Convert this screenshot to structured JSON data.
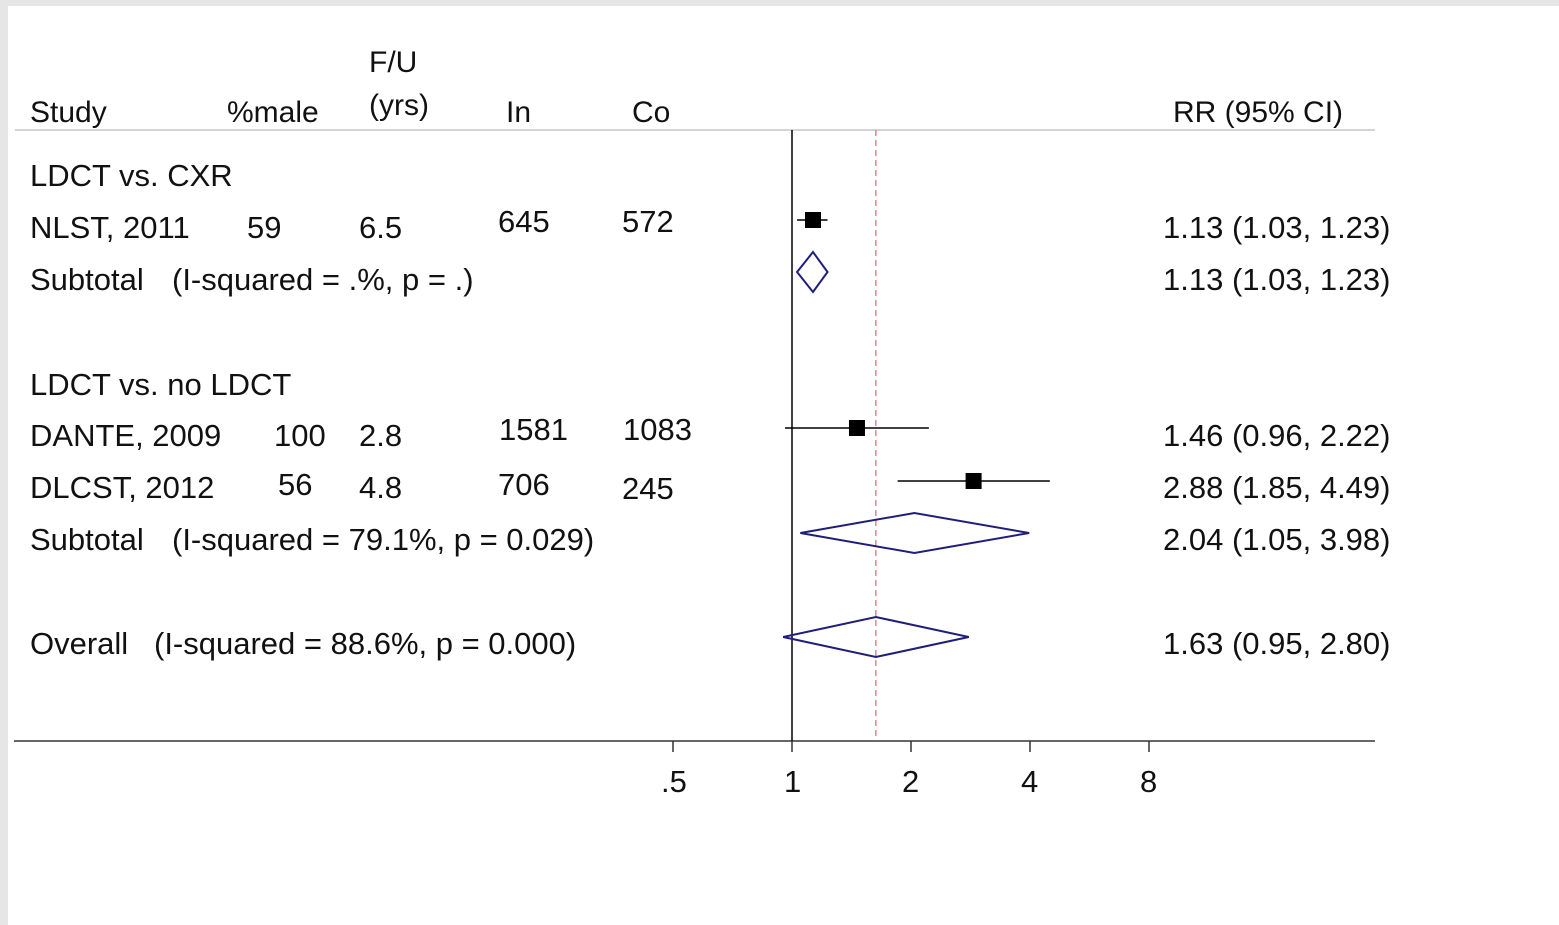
{
  "headers": {
    "study": "Study",
    "pct_male": "%male",
    "fu_line1": "F/U",
    "fu_line2": "(yrs)",
    "in": "In",
    "co": "Co",
    "rr": "RR (95% CI)"
  },
  "groups": [
    {
      "label": "LDCT vs. CXR",
      "studies": [
        {
          "name": "NLST, 2011",
          "pct_male": "59",
          "fu": "6.5",
          "in": "645",
          "co": "572",
          "rr_text": "1.13 (1.03, 1.23)"
        }
      ],
      "subtotal": {
        "label": "Subtotal",
        "stat": "(I-squared = .%, p = .)",
        "rr_text": "1.13 (1.03, 1.23)"
      }
    },
    {
      "label": "LDCT vs. no LDCT",
      "studies": [
        {
          "name": "DANTE, 2009",
          "pct_male": "100",
          "fu": "2.8",
          "in": "1581",
          "co": "1083",
          "rr_text": "1.46 (0.96, 2.22)"
        },
        {
          "name": "DLCST, 2012",
          "pct_male": "56",
          "fu": "4.8",
          "in": "706",
          "co": "245",
          "rr_text": "2.88 (1.85, 4.49)"
        }
      ],
      "subtotal": {
        "label": "Subtotal",
        "stat": "(I-squared = 79.1%, p = 0.029)",
        "rr_text": "2.04 (1.05, 3.98)"
      }
    }
  ],
  "overall": {
    "label": "Overall",
    "stat": "(I-squared = 88.6%, p = 0.000)",
    "rr_text": "1.63 (0.95, 2.80)"
  },
  "colors": {
    "point": "#000000",
    "diamond": "#1f1f7a",
    "ref_line": "#000000",
    "overall_line": "#c0505a"
  },
  "chart_data": {
    "type": "forest",
    "x_scale": "log",
    "x_ticks": [
      ".5",
      "1",
      "2",
      "4",
      "8"
    ],
    "xlim": [
      0.5,
      8
    ],
    "null_value": 1,
    "overall_line_value": 1.63,
    "points": [
      {
        "label": "NLST, 2011",
        "rr": 1.13,
        "lo": 1.03,
        "hi": 1.23,
        "kind": "study"
      },
      {
        "label": "Subtotal",
        "rr": 1.13,
        "lo": 1.03,
        "hi": 1.23,
        "kind": "subtotal"
      },
      {
        "label": "DANTE, 2009",
        "rr": 1.46,
        "lo": 0.96,
        "hi": 2.22,
        "kind": "study"
      },
      {
        "label": "DLCST, 2012",
        "rr": 2.88,
        "lo": 1.85,
        "hi": 4.49,
        "kind": "study"
      },
      {
        "label": "Subtotal",
        "rr": 2.04,
        "lo": 1.05,
        "hi": 3.98,
        "kind": "subtotal"
      },
      {
        "label": "Overall",
        "rr": 1.63,
        "lo": 0.95,
        "hi": 2.8,
        "kind": "overall"
      }
    ]
  }
}
